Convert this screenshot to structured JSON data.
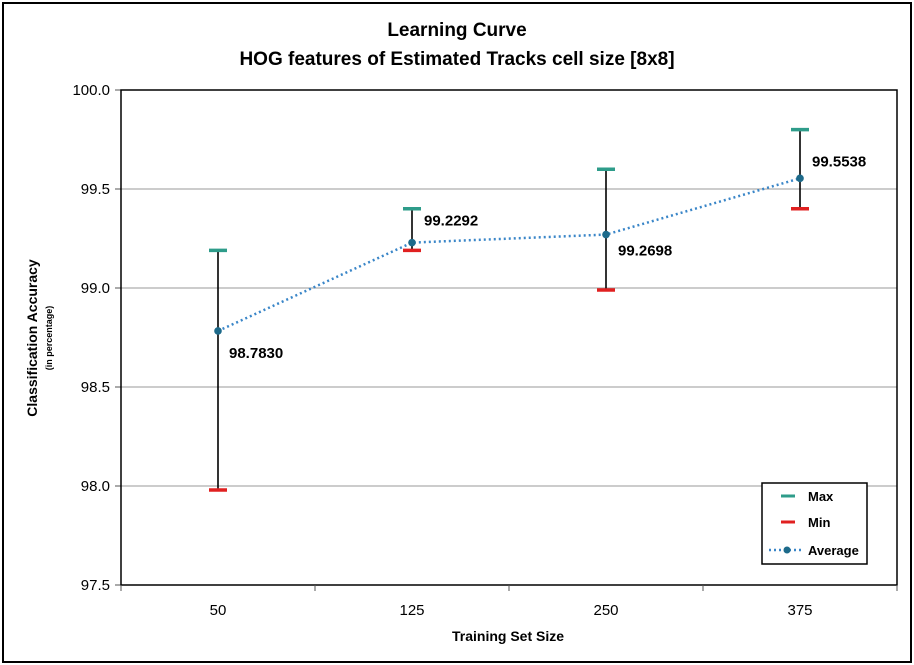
{
  "chart_data": {
    "type": "line",
    "title": [
      "Learning Curve",
      "HOG features of Estimated Tracks cell size [8x8]"
    ],
    "xlabel": "Training Set Size",
    "ylabel": "Classification Accuracy",
    "ylabel_sub": "(in percentage)",
    "categories": [
      "50",
      "125",
      "250",
      "375"
    ],
    "ylim": [
      97.5,
      100.0
    ],
    "yticks": [
      "97.5",
      "98.0",
      "98.5",
      "99.0",
      "99.5",
      "100.0"
    ],
    "grid": true,
    "legend_position": "bottom-right",
    "series": [
      {
        "name": "Max",
        "values": [
          99.19,
          99.4,
          99.6,
          99.8
        ],
        "color": "#2e9c8a"
      },
      {
        "name": "Min",
        "values": [
          97.98,
          99.19,
          98.99,
          99.4
        ],
        "color": "#e02020"
      },
      {
        "name": "Average",
        "values": [
          98.783,
          99.2292,
          99.2698,
          99.5538
        ],
        "color": "#3a86c8"
      }
    ],
    "data_labels": [
      "98.7830",
      "99.2292",
      "99.2698",
      "99.5538"
    ]
  }
}
